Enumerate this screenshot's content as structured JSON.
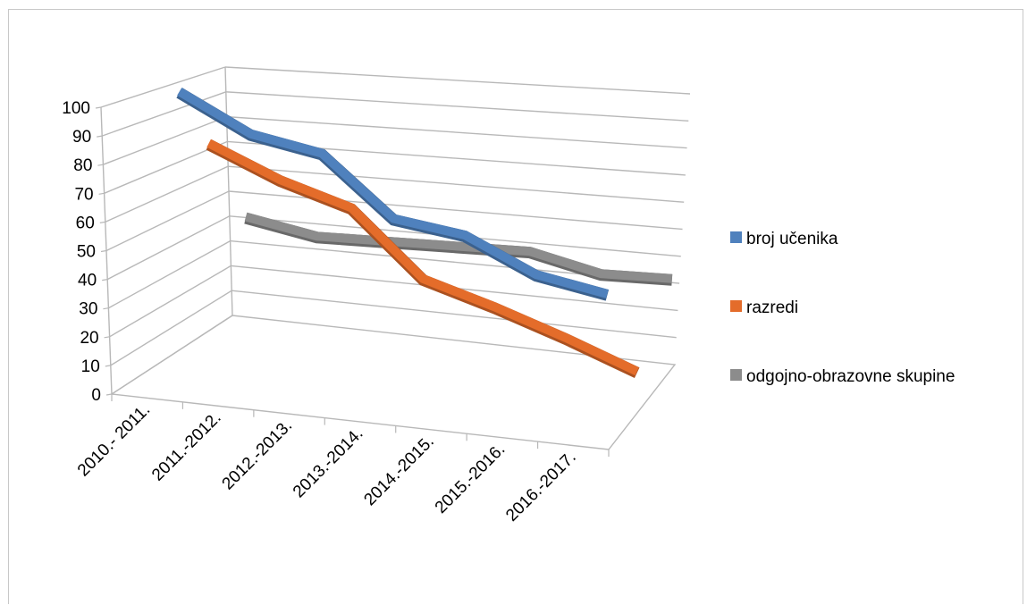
{
  "chart_data": {
    "type": "line",
    "title": "",
    "xlabel": "",
    "ylabel": "",
    "categories": [
      "2010.- 2011.",
      "2011.-2012.",
      "2012.-2013.",
      "2013.-2014.",
      "2014.-2015.",
      "2015.-2016.",
      "2016.-2017."
    ],
    "y_ticks": [
      "0",
      "10",
      "20",
      "30",
      "40",
      "50",
      "60",
      "70",
      "80",
      "90",
      "100"
    ],
    "ylim": [
      0,
      100
    ],
    "grid": true,
    "projection": "3d",
    "legend_position": "right",
    "series": [
      {
        "name": "broj učenika",
        "color": "#4f81bd",
        "values": [
          100,
          88,
          84,
          64,
          61,
          50,
          46
        ]
      },
      {
        "name": "razredi",
        "color": "#e46c2a",
        "values": [
          77,
          67,
          60,
          38,
          31,
          23,
          14
        ]
      },
      {
        "name": "odgojno-obrazovne skupine",
        "color": "#8c8c8c",
        "values": [
          42,
          38,
          39,
          40,
          41,
          36,
          37
        ]
      }
    ]
  }
}
